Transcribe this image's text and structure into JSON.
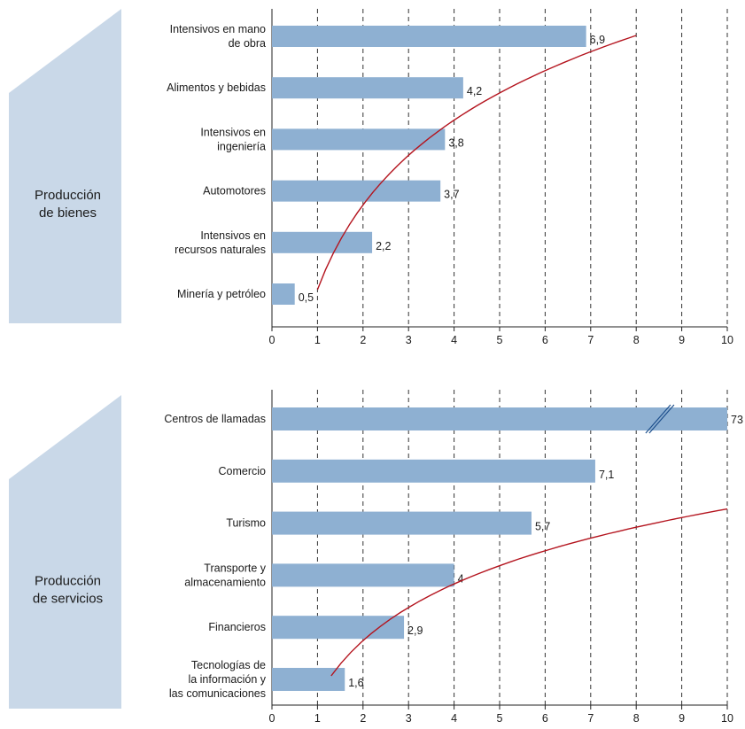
{
  "colors": {
    "bar": "#8eb0d2",
    "curve": "#b4141e",
    "band": "#c9d8e8",
    "grid": "#333333"
  },
  "chart_data": [
    {
      "type": "bar",
      "group_label": [
        "Producción",
        "de bienes"
      ],
      "categories": [
        [
          "Intensivos en mano",
          "de obra"
        ],
        [
          "Alimentos y bebidas"
        ],
        [
          "Intensivos en",
          "ingeniería"
        ],
        [
          "Automotores"
        ],
        [
          "Intensivos en",
          "recursos naturales"
        ],
        [
          "Minería y petróleo"
        ]
      ],
      "values": [
        6.9,
        4.2,
        3.8,
        3.7,
        2.2,
        0.5
      ],
      "value_labels": [
        "6,9",
        "4,2",
        "3,8",
        "3,7",
        "2,2",
        "0,5"
      ],
      "xlim": [
        0,
        10
      ],
      "xticks": [
        "0",
        "1",
        "2",
        "3",
        "4",
        "5",
        "6",
        "7",
        "8",
        "9",
        "10"
      ],
      "grid": true,
      "trend_curve": {
        "type": "logarithmic",
        "from_x": 1,
        "to_x": 8
      }
    },
    {
      "type": "bar",
      "group_label": [
        "Producción",
        "de servicios"
      ],
      "categories": [
        [
          "Centros de llamadas"
        ],
        [
          "Comercio"
        ],
        [
          "Turismo"
        ],
        [
          "Transporte y",
          "almacenamiento"
        ],
        [
          "Financieros"
        ],
        [
          "Tecnologías de",
          "la información y",
          "las comunicaciones"
        ]
      ],
      "values": [
        73,
        7.1,
        5.7,
        4,
        2.9,
        1.6
      ],
      "value_labels": [
        "73",
        "7,1",
        "5,7",
        "4",
        "2,9",
        "1,6"
      ],
      "axis_break": {
        "category_index": 0,
        "at_x": 8.5
      },
      "xlim": [
        0,
        10
      ],
      "xticks": [
        "0",
        "1",
        "2",
        "3",
        "4",
        "5",
        "6",
        "7",
        "8",
        "9",
        "10"
      ],
      "grid": true,
      "trend_curve": {
        "type": "logarithmic",
        "from_x": 1.3,
        "to_x": 10
      }
    }
  ]
}
